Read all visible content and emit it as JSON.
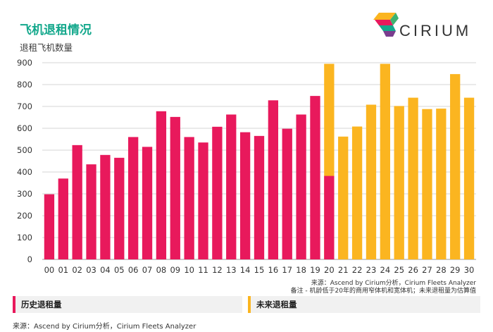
{
  "header": {
    "title": "飞机退租情况",
    "subtitle": "退租飞机数量",
    "logo_text": "CIRIUM"
  },
  "colors": {
    "historical": "#e8195c",
    "forecast": "#fbb520",
    "title": "#14a88c",
    "grid": "#d4d4d4"
  },
  "chart_data": {
    "type": "bar",
    "categories": [
      "00",
      "01",
      "02",
      "03",
      "04",
      "05",
      "06",
      "07",
      "08",
      "09",
      "10",
      "11",
      "12",
      "13",
      "14",
      "15",
      "16",
      "17",
      "18",
      "19",
      "20",
      "21",
      "22",
      "23",
      "24",
      "25",
      "26",
      "27",
      "28",
      "29",
      "30"
    ],
    "series": [
      {
        "name": "历史退租量",
        "values": [
          298,
          370,
          523,
          435,
          478,
          465,
          560,
          515,
          678,
          652,
          560,
          535,
          607,
          663,
          582,
          565,
          728,
          598,
          663,
          748,
          382,
          null,
          null,
          null,
          null,
          null,
          null,
          null,
          null,
          null,
          null
        ]
      },
      {
        "name": "未来退租量",
        "values": [
          null,
          null,
          null,
          null,
          null,
          null,
          null,
          null,
          null,
          null,
          null,
          null,
          null,
          null,
          null,
          null,
          null,
          null,
          null,
          null,
          895,
          562,
          608,
          708,
          895,
          702,
          740,
          688,
          690,
          848,
          740
        ]
      }
    ],
    "ylim": [
      0,
      900
    ],
    "yticks": [
      0,
      100,
      200,
      300,
      400,
      500,
      600,
      700,
      800,
      900
    ],
    "grid": true
  },
  "notes": {
    "source_line": "来源：Ascend by Cirium分析，Cirium Fleets Analyzer",
    "remark_line": "备注 - 机龄低于20年的商用窄体机和宽体机；未来退租量为估算值"
  },
  "legend": {
    "historical": "历史退租量",
    "forecast": "未来退租量"
  },
  "footer": {
    "source": "来源：Ascend by Cirium分析，Cirium Fleets Analyzer"
  }
}
